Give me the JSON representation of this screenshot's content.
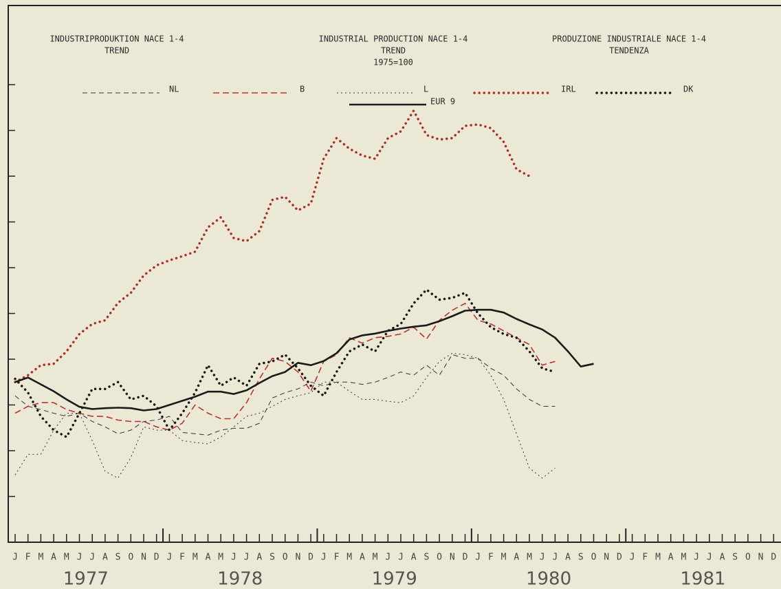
{
  "chart_data": {
    "type": "line",
    "titles": [
      [
        "INDUSTRIPRODUKTION NACE 1-4",
        "TREND"
      ],
      [
        "INDUSTRIAL PRODUCTION NACE 1-4",
        "TREND",
        "1975=100"
      ],
      [
        "PRODUZIONE INDUSTRIALE NACE 1-4",
        "TENDENZA"
      ]
    ],
    "categories": [
      "J",
      "F",
      "M",
      "A",
      "M",
      "J",
      "J",
      "A",
      "S",
      "O",
      "N",
      "D",
      "J",
      "F",
      "M",
      "A",
      "M",
      "J",
      "J",
      "A",
      "S",
      "O",
      "N",
      "D",
      "J",
      "F",
      "M",
      "A",
      "M",
      "J",
      "J",
      "A",
      "S",
      "O",
      "N",
      "D",
      "J",
      "F",
      "M",
      "A",
      "M",
      "J",
      "J",
      "A",
      "S",
      "O",
      "N",
      "D",
      "J",
      "F",
      "M",
      "A",
      "M",
      "J",
      "J",
      "A",
      "S",
      "O",
      "N",
      "D"
    ],
    "years": [
      "1977",
      "1978",
      "1979",
      "1980",
      "1981"
    ],
    "ylim": [
      0,
      11.7
    ],
    "yticks": [
      1,
      2,
      3,
      4,
      5,
      6,
      7,
      8,
      9,
      10
    ],
    "series": [
      {
        "name": "NL",
        "color": "#333333",
        "style": "dashed-thin",
        "values": [
          3.2,
          2.97,
          2.9,
          2.82,
          2.75,
          2.82,
          2.64,
          2.52,
          2.37,
          2.45,
          2.64,
          2.67,
          2.75,
          2.4,
          2.37,
          2.34,
          2.45,
          2.49,
          2.49,
          2.6,
          3.15,
          3.27,
          3.35,
          3.5,
          3.42,
          3.5,
          3.5,
          3.45,
          3.5,
          3.6,
          3.72,
          3.65,
          3.87,
          3.65,
          4.1,
          4.02,
          4.02,
          3.8,
          3.65,
          3.35,
          3.12,
          2.97,
          2.97,
          null,
          null,
          null,
          null,
          null,
          null,
          null,
          null,
          null,
          null,
          null,
          null,
          null,
          null,
          null,
          null,
          null
        ]
      },
      {
        "name": "B",
        "color": "#b8332b",
        "style": "dashed",
        "values": [
          2.82,
          2.97,
          3.05,
          3.05,
          2.9,
          2.82,
          2.75,
          2.75,
          2.67,
          2.64,
          2.64,
          2.52,
          2.45,
          2.6,
          3.0,
          2.82,
          2.7,
          2.7,
          3.05,
          3.57,
          4.02,
          3.95,
          3.72,
          3.3,
          3.95,
          4.1,
          4.47,
          4.35,
          4.47,
          4.5,
          4.55,
          4.7,
          4.44,
          4.85,
          5.07,
          5.22,
          4.85,
          4.77,
          4.62,
          4.47,
          4.32,
          3.87,
          3.95,
          null,
          null,
          null,
          null,
          null,
          null,
          null,
          null,
          null,
          null,
          null,
          null,
          null,
          null,
          null,
          null,
          null
        ]
      },
      {
        "name": "L",
        "color": "#333333",
        "style": "dotted-thin",
        "values": [
          1.47,
          1.92,
          1.92,
          2.45,
          2.82,
          2.82,
          2.22,
          1.55,
          1.4,
          1.85,
          2.52,
          2.45,
          2.45,
          2.22,
          2.18,
          2.15,
          2.3,
          2.52,
          2.75,
          2.82,
          2.97,
          3.12,
          3.2,
          3.27,
          3.5,
          3.5,
          3.3,
          3.12,
          3.12,
          3.08,
          3.05,
          3.2,
          3.6,
          3.95,
          4.13,
          4.1,
          4.02,
          3.65,
          3.12,
          2.37,
          1.62,
          1.4,
          1.62,
          null,
          null,
          null,
          null,
          null,
          null,
          null,
          null,
          null,
          null,
          null,
          null,
          null,
          null,
          null,
          null,
          null
        ]
      },
      {
        "name": "IRL",
        "color": "#a83226",
        "style": "dotted-bold",
        "values": [
          3.5,
          3.65,
          3.87,
          3.9,
          4.17,
          4.55,
          4.77,
          4.85,
          5.23,
          5.45,
          5.83,
          6.05,
          6.16,
          6.25,
          6.35,
          6.88,
          7.1,
          6.65,
          6.58,
          6.8,
          7.48,
          7.55,
          7.25,
          7.4,
          8.38,
          8.83,
          8.6,
          8.45,
          8.38,
          8.83,
          8.98,
          9.43,
          8.9,
          8.8,
          8.83,
          9.1,
          9.13,
          9.05,
          8.75,
          8.15,
          8.0,
          null,
          null,
          null,
          null,
          null,
          null,
          null,
          null,
          null,
          null,
          null,
          null,
          null,
          null,
          null,
          null,
          null,
          null,
          null
        ]
      },
      {
        "name": "DK",
        "color": "#1a1a1a",
        "style": "dotted-bold",
        "values": [
          3.57,
          3.27,
          2.75,
          2.45,
          2.3,
          2.82,
          3.35,
          3.35,
          3.5,
          3.12,
          3.2,
          2.97,
          2.45,
          2.82,
          3.27,
          3.87,
          3.42,
          3.6,
          3.42,
          3.9,
          3.95,
          4.1,
          3.8,
          3.42,
          3.2,
          3.72,
          4.17,
          4.32,
          4.17,
          4.62,
          4.77,
          5.22,
          5.52,
          5.3,
          5.34,
          5.45,
          5.0,
          4.7,
          4.55,
          4.47,
          4.17,
          3.8,
          3.72,
          null,
          null,
          null,
          null,
          null,
          null,
          null,
          null,
          null,
          null,
          null,
          null,
          null,
          null,
          null,
          null,
          null
        ]
      },
      {
        "name": "EUR 9",
        "color": "#1a1a1a",
        "style": "solid",
        "values": [
          3.5,
          3.6,
          3.45,
          3.3,
          3.12,
          2.96,
          2.91,
          2.93,
          2.94,
          2.93,
          2.88,
          2.91,
          3.0,
          3.09,
          3.18,
          3.29,
          3.29,
          3.24,
          3.32,
          3.48,
          3.63,
          3.72,
          3.92,
          3.87,
          3.96,
          4.13,
          4.43,
          4.52,
          4.56,
          4.62,
          4.67,
          4.71,
          4.74,
          4.83,
          4.94,
          5.06,
          5.08,
          5.08,
          5.02,
          4.88,
          4.76,
          4.65,
          4.47,
          4.17,
          3.84,
          3.9,
          null,
          null,
          null,
          null,
          null,
          null,
          null,
          null,
          null,
          null,
          null,
          null,
          null,
          null
        ]
      }
    ]
  }
}
